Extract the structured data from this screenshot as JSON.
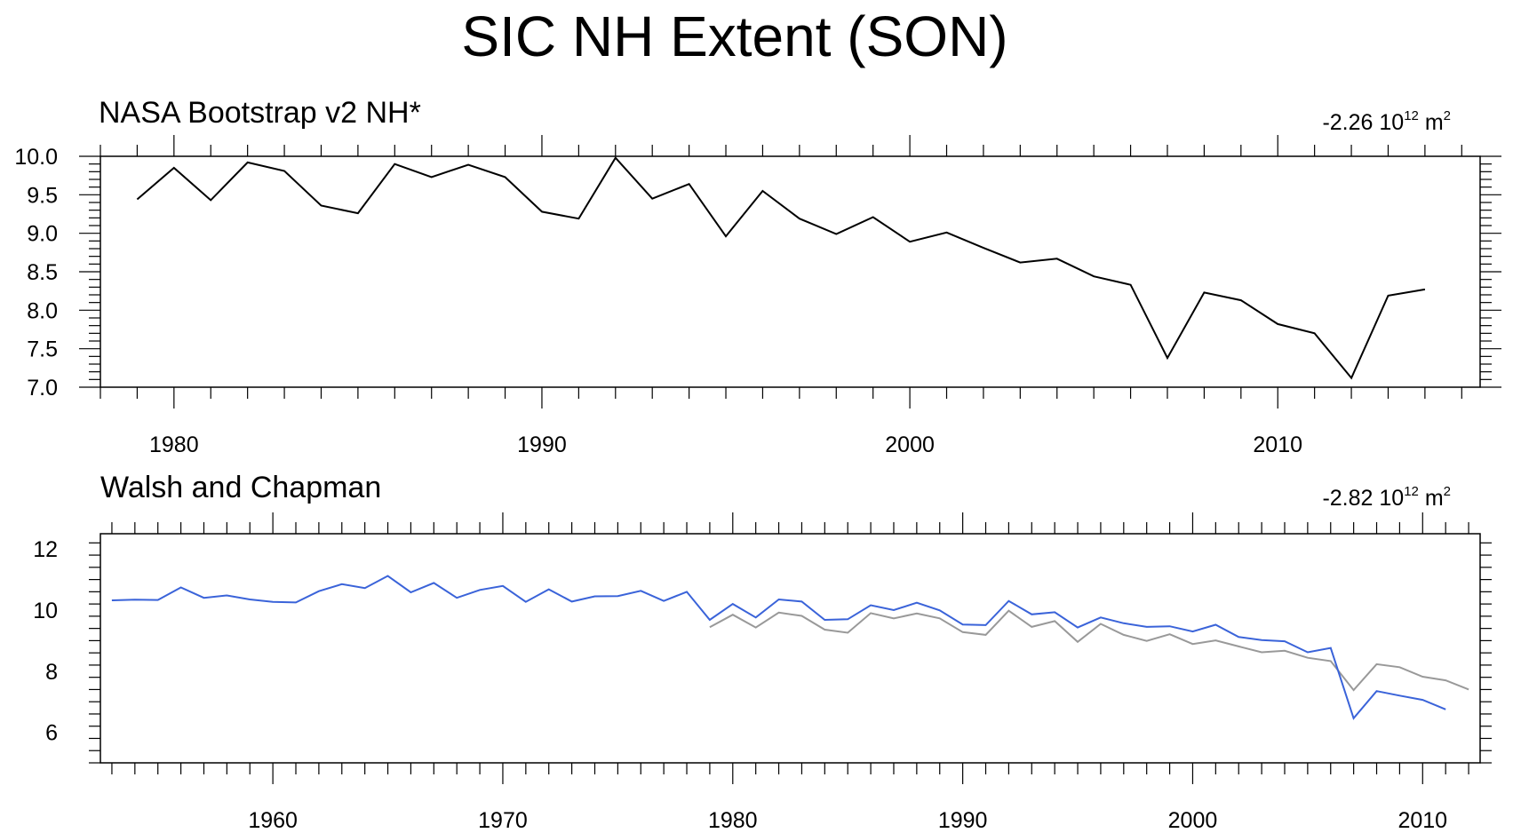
{
  "title": "SIC NH Extent (SON)",
  "chart_data": [
    {
      "type": "line",
      "title": "NASA Bootstrap v2 NH*",
      "annotation": {
        "value": "-2.26 10",
        "exponent": "12",
        "unit": " m",
        "unit_exp": "2"
      },
      "xlim": [
        1978,
        2015.5
      ],
      "ylim": [
        7.0,
        10.0
      ],
      "x_ticks": [
        1980,
        1990,
        2000,
        2010
      ],
      "x_tick_labels": [
        "1980",
        "1990",
        "2000",
        "2010"
      ],
      "y_ticks": [
        7.0,
        7.5,
        8.0,
        8.5,
        9.0,
        9.5,
        10.0
      ],
      "y_tick_labels": [
        "7.0",
        "7.5",
        "8.0",
        "8.5",
        "9.0",
        "9.5",
        "10.0"
      ],
      "series": [
        {
          "color": "#000000",
          "x": [
            1979,
            1980,
            1981,
            1982,
            1983,
            1984,
            1985,
            1986,
            1987,
            1988,
            1989,
            1990,
            1991,
            1992,
            1993,
            1994,
            1995,
            1996,
            1997,
            1998,
            1999,
            2000,
            2001,
            2002,
            2003,
            2004,
            2005,
            2006,
            2007,
            2008,
            2009,
            2010,
            2011,
            2012,
            2013,
            2014
          ],
          "y": [
            9.44,
            9.85,
            9.43,
            9.92,
            9.81,
            9.36,
            9.26,
            9.9,
            9.73,
            9.89,
            9.73,
            9.28,
            9.19,
            9.98,
            9.45,
            9.64,
            8.96,
            9.55,
            9.19,
            8.99,
            9.21,
            8.89,
            9.01,
            8.81,
            8.62,
            8.67,
            8.44,
            8.33,
            7.38,
            8.23,
            8.13,
            7.82,
            7.7,
            7.12,
            8.19,
            8.27
          ]
        }
      ]
    },
    {
      "type": "line",
      "title": "Walsh and Chapman",
      "annotation": {
        "value": "-2.82 10",
        "exponent": "12",
        "unit": " m",
        "unit_exp": "2"
      },
      "xlim": [
        1952.5,
        2012.5
      ],
      "ylim": [
        5,
        12.5
      ],
      "x_ticks": [
        1960,
        1970,
        1980,
        1990,
        2000,
        2010
      ],
      "x_tick_labels": [
        "1960",
        "1970",
        "1980",
        "1990",
        "2000",
        "2010"
      ],
      "y_ticks": [
        6,
        8,
        10,
        12
      ],
      "y_tick_labels": [
        "6",
        "8",
        "10",
        "12"
      ],
      "series": [
        {
          "color": "#999999",
          "x": [
            1979,
            1980,
            1981,
            1982,
            1983,
            1984,
            1985,
            1986,
            1987,
            1988,
            1989,
            1990,
            1991,
            1992,
            1993,
            1994,
            1995,
            1996,
            1997,
            1998,
            1999,
            2000,
            2001,
            2002,
            2003,
            2004,
            2005,
            2006,
            2007,
            2008,
            2009,
            2010,
            2011,
            2012
          ],
          "y": [
            9.44,
            9.85,
            9.43,
            9.92,
            9.81,
            9.36,
            9.26,
            9.9,
            9.73,
            9.89,
            9.73,
            9.28,
            9.19,
            9.98,
            9.45,
            9.64,
            8.96,
            9.55,
            9.19,
            8.99,
            9.21,
            8.89,
            9.01,
            8.81,
            8.62,
            8.67,
            8.44,
            8.33,
            7.38,
            8.23,
            8.13,
            7.82,
            7.7,
            7.4
          ]
        },
        {
          "color": "#3a63d9",
          "x": [
            1953,
            1954,
            1955,
            1956,
            1957,
            1958,
            1959,
            1960,
            1961,
            1962,
            1963,
            1964,
            1965,
            1966,
            1967,
            1968,
            1969,
            1970,
            1971,
            1972,
            1973,
            1974,
            1975,
            1976,
            1977,
            1978,
            1979,
            1980,
            1981,
            1982,
            1983,
            1984,
            1985,
            1986,
            1987,
            1988,
            1989,
            1990,
            1991,
            1992,
            1993,
            1994,
            1995,
            1996,
            1997,
            1998,
            1999,
            2000,
            2001,
            2002,
            2003,
            2004,
            2005,
            2006,
            2007,
            2008,
            2009,
            2010,
            2011
          ],
          "y": [
            10.32,
            10.34,
            10.33,
            10.74,
            10.4,
            10.48,
            10.35,
            10.27,
            10.25,
            10.62,
            10.85,
            10.72,
            11.12,
            10.58,
            10.89,
            10.4,
            10.66,
            10.79,
            10.27,
            10.68,
            10.28,
            10.45,
            10.46,
            10.63,
            10.3,
            10.6,
            9.68,
            10.2,
            9.76,
            10.35,
            10.28,
            9.68,
            9.7,
            10.16,
            10.0,
            10.24,
            9.99,
            9.53,
            9.51,
            10.3,
            9.86,
            9.93,
            9.43,
            9.76,
            9.57,
            9.45,
            9.47,
            9.3,
            9.52,
            9.12,
            9.02,
            8.98,
            8.62,
            8.76,
            6.46,
            7.35,
            7.2,
            7.06,
            6.75
          ]
        }
      ]
    }
  ]
}
